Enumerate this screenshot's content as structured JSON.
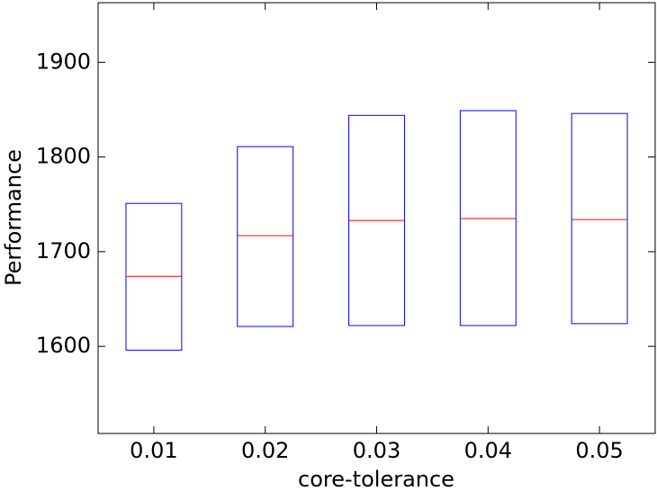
{
  "chart_data": {
    "type": "box",
    "xlabel": "core-tolerance",
    "ylabel": "Performance",
    "categories": [
      "0.01",
      "0.02",
      "0.03",
      "0.04",
      "0.05"
    ],
    "q1": [
      1596,
      1621,
      1622,
      1622,
      1624
    ],
    "median": [
      1674,
      1717,
      1733,
      1735,
      1734
    ],
    "q3": [
      1751,
      1811,
      1844,
      1849,
      1846
    ],
    "box_color": "#0000ff",
    "median_color": "#ff0000",
    "ylim": [
      1508,
      1963
    ],
    "yticks": [
      1600,
      1700,
      1800,
      1900
    ],
    "grid": false
  }
}
